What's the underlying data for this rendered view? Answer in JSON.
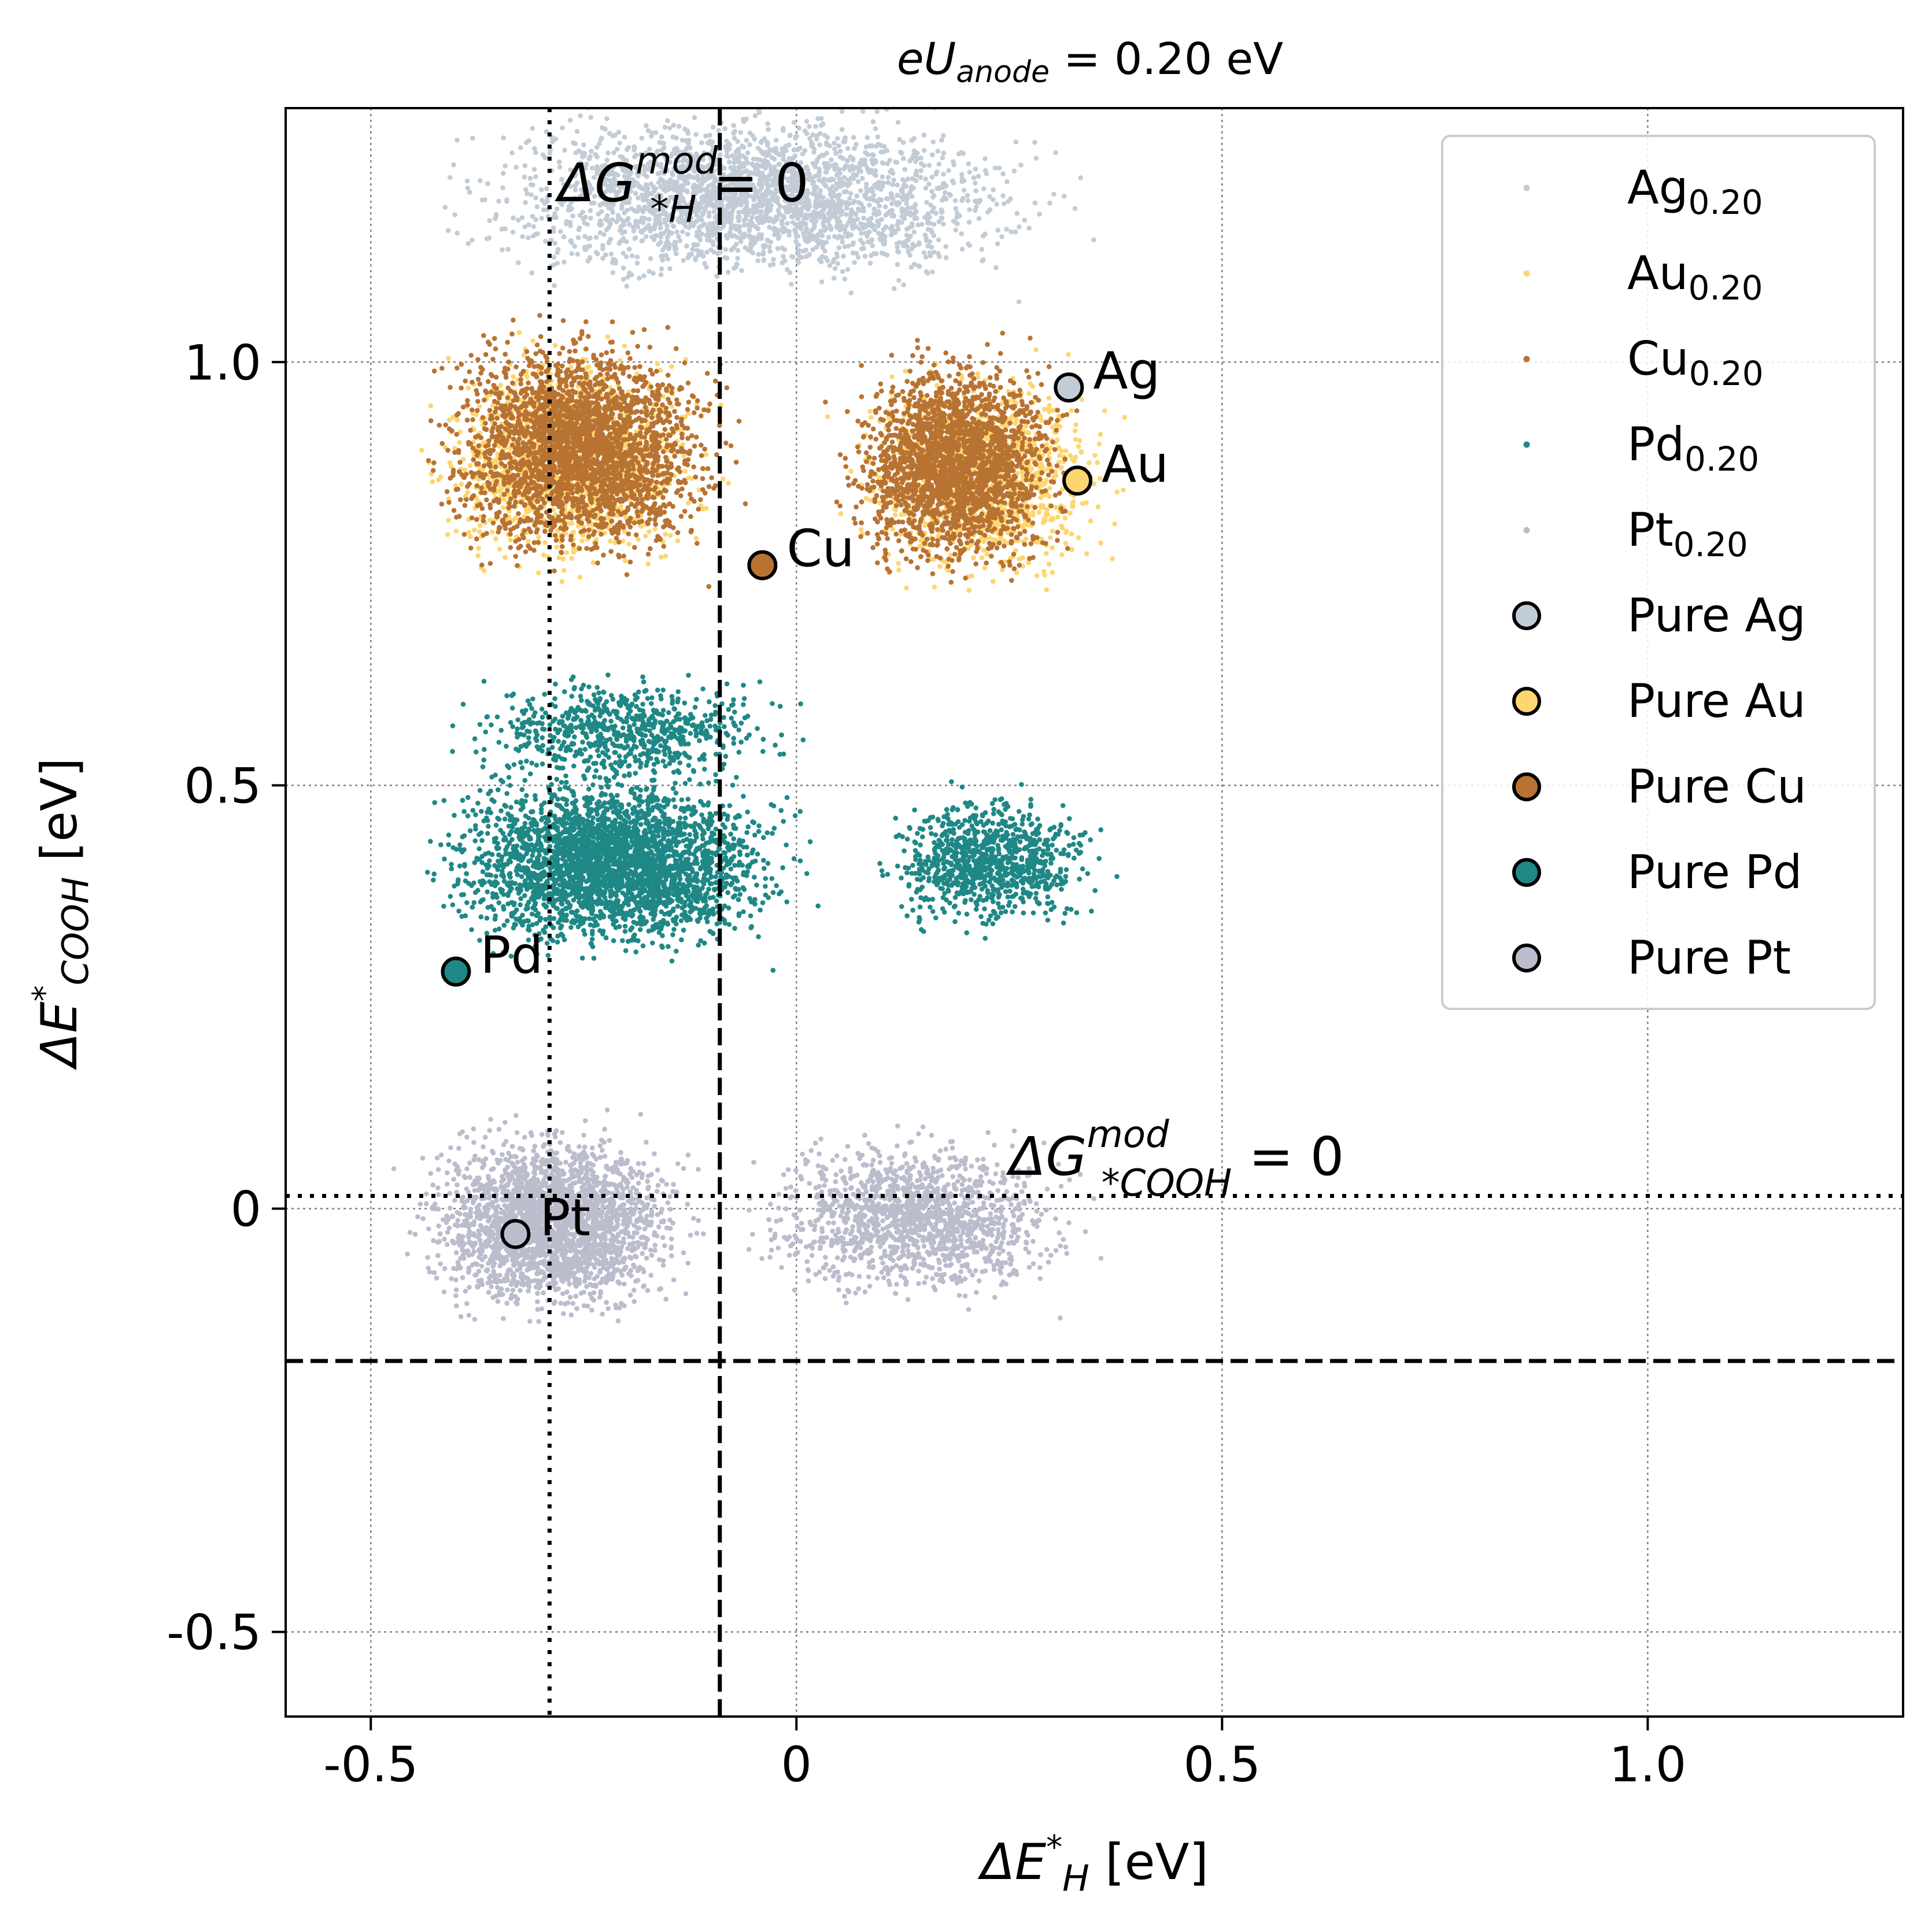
{
  "chart_data": {
    "type": "scatter",
    "title": {
      "prefix": "eU",
      "subscript": "anode",
      "suffix": " = 0.20 eV"
    },
    "xlabel": {
      "prefix": "ΔE",
      "sub_star": "*",
      "sub": "H",
      "suffix": " [eV]"
    },
    "ylabel": {
      "prefix": "ΔE",
      "sub_star": "*",
      "sub": "COOH",
      "suffix": " [eV]"
    },
    "xlim": [
      -0.6,
      1.3
    ],
    "ylim": [
      -0.6,
      1.3
    ],
    "xticks": [
      {
        "v": -0.5,
        "label": "-0.5"
      },
      {
        "v": 0,
        "label": "0"
      },
      {
        "v": 0.5,
        "label": "0.5"
      },
      {
        "v": 1.0,
        "label": "1.0"
      }
    ],
    "yticks": [
      {
        "v": -0.5,
        "label": "-0.5"
      },
      {
        "v": 0,
        "label": "0"
      },
      {
        "v": 0.5,
        "label": "0.5"
      },
      {
        "v": 1.0,
        "label": "1.0"
      }
    ],
    "grid": true,
    "legend_position": "top-right",
    "series": [
      {
        "name": "Ag",
        "sub": "0.20",
        "color": "#c2ccd6",
        "clusters": [
          {
            "x": [
              -0.49,
              0.39
            ],
            "y": [
              1.06,
              1.33
            ],
            "n": 2600
          }
        ]
      },
      {
        "name": "Au",
        "sub": "0.20",
        "color": "#fdd66f",
        "clusters": [
          {
            "x": [
              -0.48,
              -0.05
            ],
            "y": [
              0.71,
              1.06
            ],
            "n": 1400
          },
          {
            "x": [
              0.02,
              0.42
            ],
            "y": [
              0.7,
              1.03
            ],
            "n": 1200
          }
        ]
      },
      {
        "name": "Cu",
        "sub": "0.20",
        "color": "#b87333",
        "clusters": [
          {
            "x": [
              -0.47,
              -0.04
            ],
            "y": [
              0.72,
              1.08
            ],
            "n": 2600
          },
          {
            "x": [
              0.02,
              0.36
            ],
            "y": [
              0.71,
              1.05
            ],
            "n": 2200
          }
        ]
      },
      {
        "name": "Pd",
        "sub": "0.20",
        "color": "#1f8886",
        "clusters": [
          {
            "x": [
              -0.48,
              0.05
            ],
            "y": [
              0.27,
              0.55
            ],
            "n": 3000
          },
          {
            "x": [
              -0.45,
              0.05
            ],
            "y": [
              0.48,
              0.65
            ],
            "n": 700
          },
          {
            "x": [
              0.06,
              0.4
            ],
            "y": [
              0.3,
              0.52
            ],
            "n": 900
          }
        ]
      },
      {
        "name": "Pt",
        "sub": "0.20",
        "color": "#bbbccc",
        "clusters": [
          {
            "x": [
              -0.49,
              -0.08
            ],
            "y": [
              -0.16,
              0.13
            ],
            "n": 2500
          },
          {
            "x": [
              -0.1,
              0.38
            ],
            "y": [
              -0.14,
              0.12
            ],
            "n": 1400
          }
        ]
      }
    ],
    "pure_points": [
      {
        "name": "Pure Ag",
        "label": "Ag",
        "x": 0.32,
        "y": 0.97,
        "color": "#c2ccd6"
      },
      {
        "name": "Pure Au",
        "label": "Au",
        "x": 0.33,
        "y": 0.86,
        "color": "#fdd66f"
      },
      {
        "name": "Pure Cu",
        "label": "Cu",
        "x": -0.04,
        "y": 0.76,
        "color": "#b87333"
      },
      {
        "name": "Pure Pd",
        "label": "Pd",
        "x": -0.4,
        "y": 0.28,
        "color": "#1f8886"
      },
      {
        "name": "Pure Pt",
        "label": "Pt",
        "x": -0.33,
        "y": -0.03,
        "color": "#bbbccc"
      }
    ],
    "reference_lines": [
      {
        "orientation": "vertical",
        "value": -0.29,
        "style": "dotted"
      },
      {
        "orientation": "vertical",
        "value": -0.09,
        "style": "dashed"
      },
      {
        "orientation": "horizontal",
        "value": 0.015,
        "style": "dotted"
      },
      {
        "orientation": "horizontal",
        "value": -0.18,
        "style": "dashed"
      }
    ],
    "annotations": [
      {
        "base": "ΔG",
        "sup": "mod",
        "sub": "*H",
        "suffix": " = 0",
        "x": -0.28,
        "y": 1.19
      },
      {
        "base": "ΔG",
        "sup": "mod",
        "sub": "*COOH",
        "suffix": " = 0",
        "x": 0.25,
        "y": 0.04
      }
    ]
  }
}
